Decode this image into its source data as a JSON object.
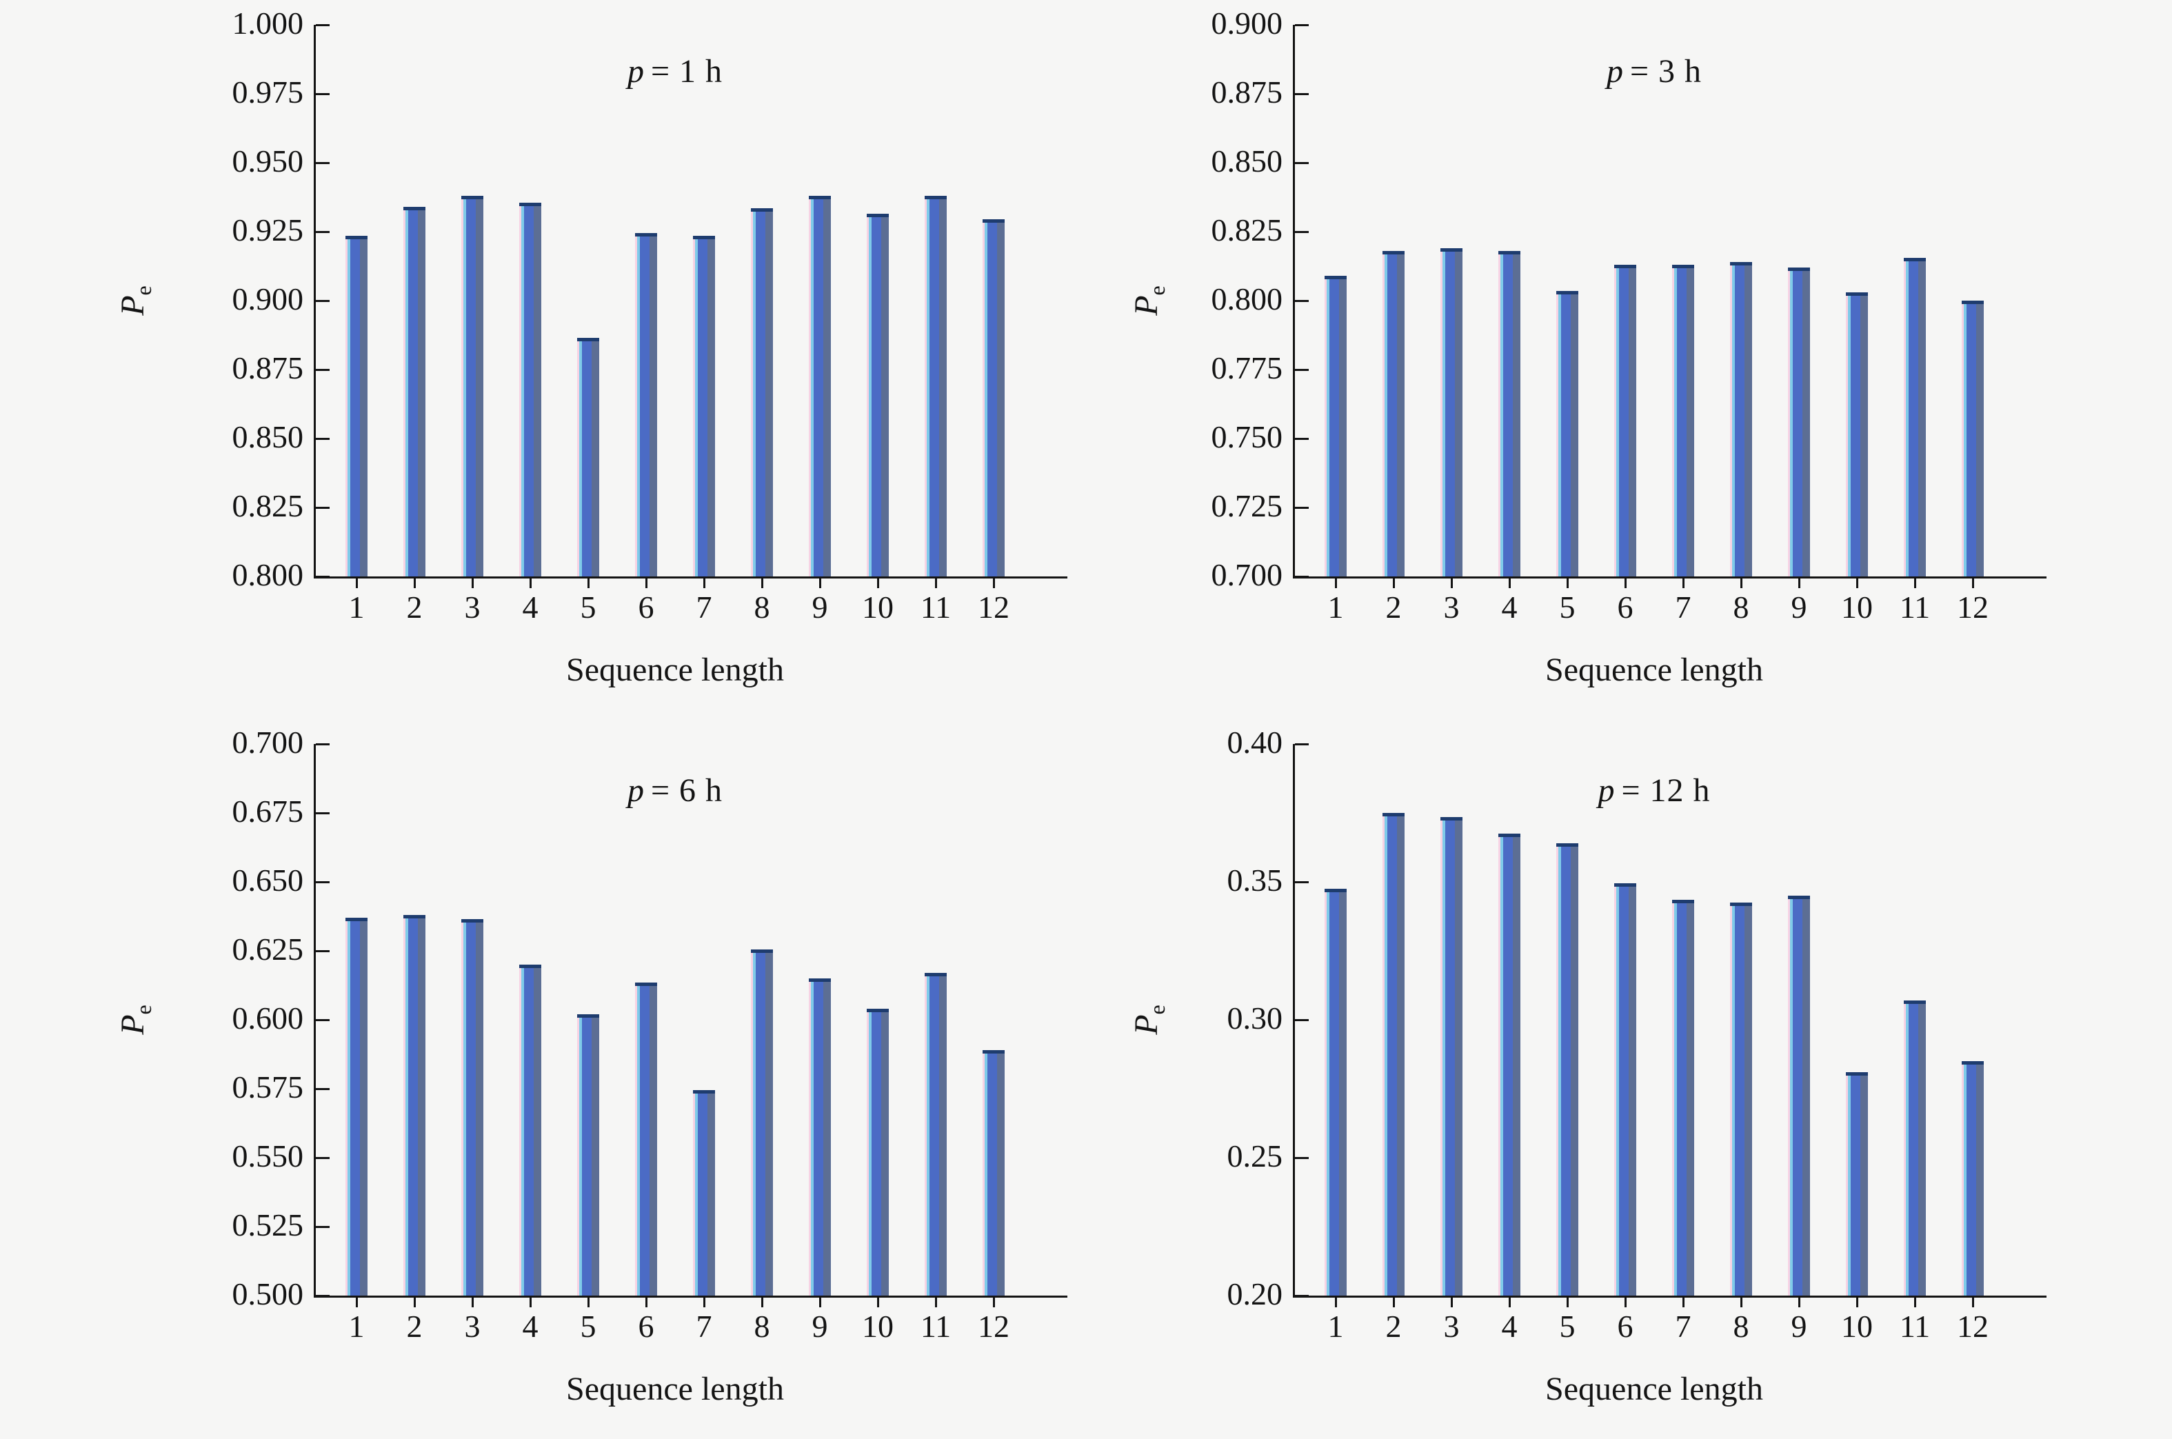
{
  "labels": {
    "xlabel": "Sequence length",
    "ylabel_main": "P",
    "ylabel_sub": "e"
  },
  "colors": {
    "background": "#f6f6f5",
    "axis": "#141414",
    "bar_body_blue": "#4b6bc5",
    "bar_right_slate": "#5c6e94",
    "bar_top_cap": "#1e3c6e",
    "bar_left_cyan": "#7fcbe9",
    "bar_left_pink": "#f7d3e4"
  },
  "chart_data": [
    {
      "type": "bar",
      "title": "p = 1 h",
      "title_var": "p",
      "title_rest": "= 1 h",
      "xlabel": "Sequence length",
      "ylabel": "Pe",
      "ylim": [
        0.8,
        1.0
      ],
      "grid": false,
      "legend": "none",
      "categories": [
        "1",
        "2",
        "3",
        "4",
        "5",
        "6",
        "7",
        "8",
        "9",
        "10",
        "11",
        "12"
      ],
      "ytick_values": [
        0.8,
        0.825,
        0.85,
        0.875,
        0.9,
        0.925,
        0.95,
        0.975,
        1.0
      ],
      "ytick_labels": [
        "0.800",
        "0.825",
        "0.850",
        "0.875",
        "0.900",
        "0.925",
        "0.950",
        "0.975",
        "1.000"
      ],
      "values": [
        0.9235,
        0.934,
        0.938,
        0.9355,
        0.8865,
        0.9245,
        0.9235,
        0.9335,
        0.938,
        0.9315,
        0.938,
        0.9295
      ]
    },
    {
      "type": "bar",
      "title": "p = 3 h",
      "title_var": "p",
      "title_rest": "= 3 h",
      "xlabel": "Sequence length",
      "ylabel": "Pe",
      "ylim": [
        0.7,
        0.9
      ],
      "grid": false,
      "legend": "none",
      "categories": [
        "1",
        "2",
        "3",
        "4",
        "5",
        "6",
        "7",
        "8",
        "9",
        "10",
        "11",
        "12"
      ],
      "ytick_values": [
        0.7,
        0.725,
        0.75,
        0.775,
        0.8,
        0.825,
        0.85,
        0.875,
        0.9
      ],
      "ytick_labels": [
        "0.700",
        "0.725",
        "0.750",
        "0.775",
        "0.800",
        "0.825",
        "0.850",
        "0.875",
        "0.900"
      ],
      "values": [
        0.809,
        0.818,
        0.819,
        0.818,
        0.8035,
        0.813,
        0.813,
        0.814,
        0.812,
        0.803,
        0.8155,
        0.8
      ]
    },
    {
      "type": "bar",
      "title": "p = 6 h",
      "title_var": "p",
      "title_rest": "= 6 h",
      "xlabel": "Sequence length",
      "ylabel": "Pe",
      "ylim": [
        0.5,
        0.7
      ],
      "grid": false,
      "legend": "none",
      "categories": [
        "1",
        "2",
        "3",
        "4",
        "5",
        "6",
        "7",
        "8",
        "9",
        "10",
        "11",
        "12"
      ],
      "ytick_values": [
        0.5,
        0.525,
        0.55,
        0.575,
        0.6,
        0.625,
        0.65,
        0.675,
        0.7
      ],
      "ytick_labels": [
        "0.500",
        "0.525",
        "0.550",
        "0.575",
        "0.600",
        "0.625",
        "0.650",
        "0.675",
        "0.700"
      ],
      "values": [
        0.637,
        0.638,
        0.6365,
        0.62,
        0.602,
        0.6135,
        0.5745,
        0.6255,
        0.615,
        0.604,
        0.617,
        0.589
      ]
    },
    {
      "type": "bar",
      "title": "p = 12 h",
      "title_var": "p",
      "title_rest": "= 12 h",
      "xlabel": "Sequence length",
      "ylabel": "Pe",
      "ylim": [
        0.2,
        0.4
      ],
      "grid": false,
      "legend": "none",
      "categories": [
        "1",
        "2",
        "3",
        "4",
        "5",
        "6",
        "7",
        "8",
        "9",
        "10",
        "11",
        "12"
      ],
      "ytick_values": [
        0.2,
        0.25,
        0.3,
        0.35,
        0.4
      ],
      "ytick_labels": [
        "0.20",
        "0.25",
        "0.30",
        "0.35",
        "0.40"
      ],
      "values": [
        0.3475,
        0.375,
        0.3735,
        0.3675,
        0.364,
        0.3495,
        0.3435,
        0.3425,
        0.345,
        0.281,
        0.307,
        0.285
      ]
    }
  ]
}
